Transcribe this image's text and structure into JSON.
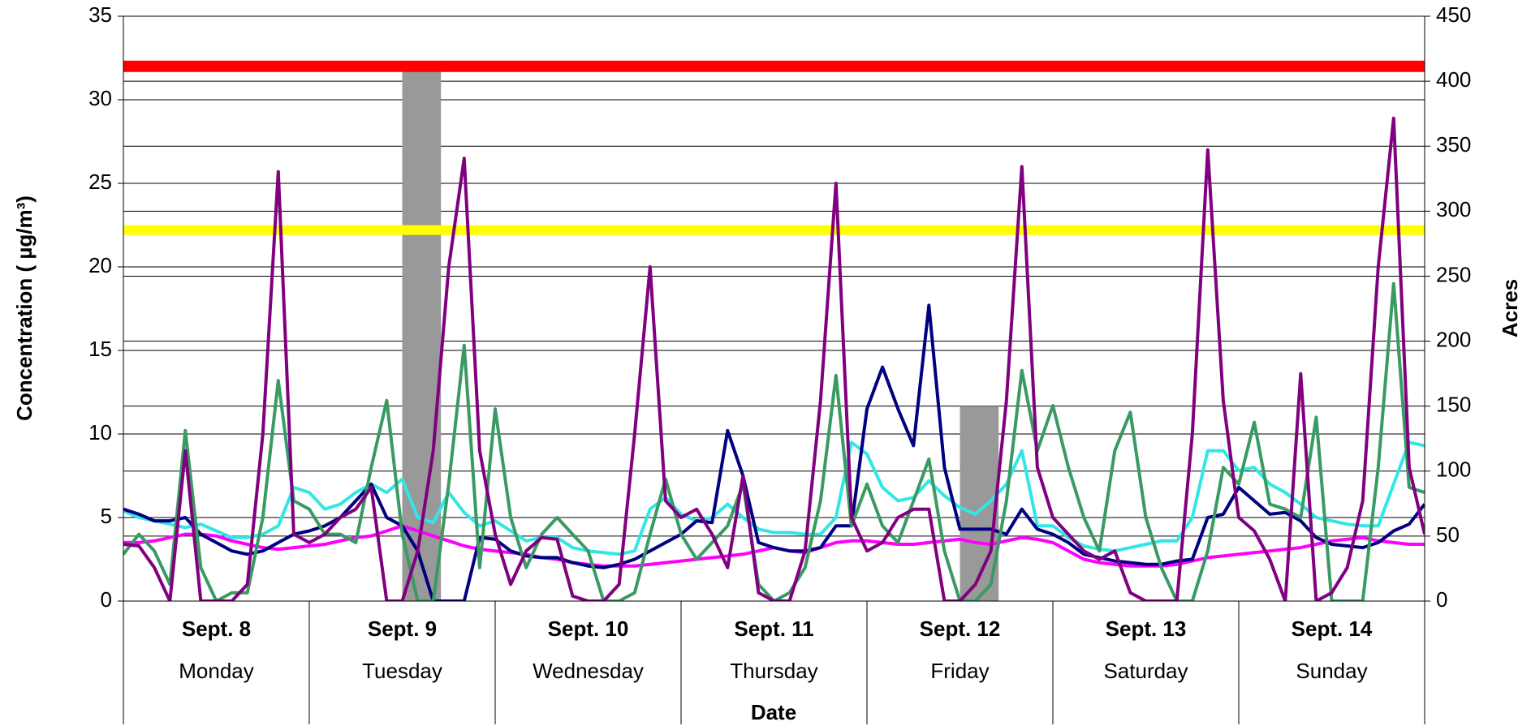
{
  "chart_data": {
    "type": "line",
    "ylabel": "Concentration ( µg/m³)",
    "y2label": "Acres",
    "xlabel": "Date",
    "categories": [
      "Sept. 8",
      "Sept. 9",
      "Sept. 10",
      "Sept. 11",
      "Sept. 12",
      "Sept. 13",
      "Sept. 14"
    ],
    "category_sublabels": [
      "Monday",
      "Tuesday",
      "Wednesday",
      "Thursday",
      "Friday",
      "Saturday",
      "Sunday"
    ],
    "xlim": [
      0,
      168
    ],
    "ylim": [
      0,
      35
    ],
    "yticks": [
      0,
      5,
      10,
      15,
      20,
      25,
      30,
      35
    ],
    "y2lim": [
      0,
      450
    ],
    "y2ticks": [
      0,
      50,
      100,
      150,
      200,
      250,
      300,
      350,
      400,
      450
    ],
    "grid": true,
    "x": [
      0,
      2,
      4,
      6,
      8,
      10,
      12,
      14,
      16,
      18,
      20,
      22,
      24,
      26,
      28,
      30,
      32,
      34,
      36,
      38,
      40,
      42,
      44,
      46,
      48,
      50,
      52,
      54,
      56,
      58,
      60,
      62,
      64,
      66,
      68,
      70,
      72,
      74,
      76,
      78,
      80,
      82,
      84,
      86,
      88,
      90,
      92,
      94,
      96,
      98,
      100,
      102,
      104,
      106,
      108,
      110,
      112,
      114,
      116,
      118,
      120,
      122,
      124,
      126,
      128,
      130,
      132,
      134,
      136,
      138,
      140,
      142,
      144,
      146,
      148,
      150,
      152,
      154,
      156,
      158,
      160,
      162,
      164,
      166,
      168
    ],
    "bars": {
      "x": [
        38.5,
        110.5
      ],
      "values": [
        411,
        150
      ],
      "color": "#999999",
      "axis": "y2"
    },
    "hlines": [
      {
        "value": 32,
        "color": "#ff0000"
      },
      {
        "value": 22.2,
        "color": "#ffff00"
      }
    ],
    "series": [
      {
        "color": "#ff00ff",
        "values": [
          3.5,
          3.5,
          3.6,
          3.8,
          4,
          4,
          3.9,
          3.6,
          3.4,
          3.2,
          3.1,
          3.2,
          3.3,
          3.4,
          3.6,
          3.8,
          3.9,
          4.2,
          4.5,
          4.2,
          3.9,
          3.6,
          3.3,
          3.1,
          3,
          2.9,
          2.8,
          2.6,
          2.5,
          2.3,
          2.2,
          2.1,
          2.1,
          2.1,
          2.2,
          2.3,
          2.4,
          2.5,
          2.6,
          2.7,
          2.8,
          3,
          3.2,
          3,
          2.9,
          3.2,
          3.5,
          3.6,
          3.6,
          3.5,
          3.4,
          3.4,
          3.5,
          3.6,
          3.7,
          3.5,
          3.4,
          3.6,
          3.8,
          3.7,
          3.5,
          3,
          2.5,
          2.3,
          2.2,
          2.1,
          2.1,
          2.1,
          2.2,
          2.4,
          2.6,
          2.7,
          2.8,
          2.9,
          3,
          3.1,
          3.2,
          3.4,
          3.6,
          3.7,
          3.8,
          3.6,
          3.5,
          3.4,
          3.4
        ]
      },
      {
        "color": "#33e6e6",
        "values": [
          5.4,
          5,
          4.8,
          4.6,
          4.4,
          4.6,
          4.2,
          3.8,
          3.8,
          4,
          4.5,
          6.8,
          6.5,
          5.5,
          5.8,
          6.5,
          7,
          6.5,
          7.3,
          5,
          4.7,
          6.5,
          5.3,
          4.5,
          4.8,
          4.2,
          3.6,
          3.8,
          3.8,
          3.2,
          3,
          2.9,
          2.8,
          3,
          5.5,
          6.2,
          5.2,
          4.8,
          5,
          5.8,
          5,
          4.3,
          4.1,
          4.1,
          4,
          4,
          5,
          9.5,
          8.8,
          6.8,
          6,
          6.2,
          7.2,
          6.3,
          5.6,
          5.2,
          6,
          7,
          9,
          4.5,
          4.5,
          3.8,
          3.3,
          3.1,
          3,
          3.2,
          3.4,
          3.6,
          3.6,
          5,
          9,
          9,
          7.8,
          8,
          7,
          6.5,
          5.8,
          5,
          4.8,
          4.6,
          4.5,
          4.5,
          7,
          9.5,
          9.3
        ]
      },
      {
        "color": "#000080",
        "values": [
          5.5,
          5.2,
          4.8,
          4.8,
          5,
          4,
          3.5,
          3,
          2.8,
          3,
          3.5,
          4,
          4.2,
          4.5,
          5,
          6,
          7,
          5,
          4.5,
          3,
          0,
          0,
          0,
          3.8,
          3.7,
          3,
          2.7,
          2.6,
          2.6,
          2.3,
          2.1,
          2,
          2.2,
          2.5,
          3,
          3.5,
          4,
          4.8,
          4.7,
          10.2,
          7.5,
          3.5,
          3.2,
          3,
          3,
          3.2,
          4.5,
          4.5,
          11.5,
          14,
          11.5,
          9.3,
          17.7,
          8,
          4.3,
          4.3,
          4.3,
          4,
          5.5,
          4.3,
          4,
          3.5,
          2.8,
          2.6,
          2.4,
          2.3,
          2.2,
          2.2,
          2.4,
          2.5,
          5,
          5.2,
          6.8,
          6,
          5.2,
          5.3,
          4.8,
          3.8,
          3.4,
          3.3,
          3.2,
          3.5,
          4.2,
          4.6,
          5.8
        ]
      },
      {
        "color": "#3a9a64",
        "values": [
          2.8,
          4,
          3,
          1,
          10.2,
          2,
          0,
          0.5,
          0.5,
          5,
          13.2,
          6,
          5.5,
          4,
          4,
          3.5,
          8,
          12,
          4,
          0,
          0,
          7,
          15.3,
          2,
          11.5,
          5,
          2,
          4,
          5,
          4,
          3,
          0,
          0,
          0.5,
          4,
          7.3,
          4,
          2.5,
          3.5,
          4.5,
          7,
          1,
          0,
          0.5,
          2,
          6,
          13.5,
          4.5,
          7,
          4.5,
          3.5,
          6,
          8.5,
          3,
          0,
          0,
          1,
          6,
          13.8,
          9,
          11.7,
          8,
          5,
          3,
          9,
          11.3,
          5,
          2,
          0,
          0,
          3,
          8,
          7,
          10.7,
          5.8,
          5.5,
          5,
          11,
          0,
          0,
          0,
          8,
          19,
          6.8,
          6.5
        ]
      },
      {
        "color": "#800080",
        "values": [
          3.4,
          3.3,
          2,
          0,
          9,
          0,
          0,
          0,
          1,
          10,
          25.7,
          4,
          3.5,
          4,
          5,
          5.5,
          6.8,
          0,
          0,
          3,
          9,
          20,
          26.5,
          9,
          4,
          1,
          3,
          3.8,
          3.7,
          0.3,
          0,
          0,
          1,
          10,
          20,
          6,
          5,
          5.5,
          4,
          2,
          7.5,
          0.5,
          0,
          0,
          3,
          12,
          25,
          5,
          3,
          3.5,
          5,
          5.5,
          5.5,
          0,
          0,
          1,
          3,
          12,
          26,
          8,
          5,
          4,
          3,
          2.5,
          3,
          0.5,
          0,
          0,
          0,
          10,
          27,
          12,
          5,
          4.2,
          2.5,
          0,
          13.6,
          0,
          0.5,
          2,
          6,
          20,
          28.9,
          8,
          4
        ]
      }
    ]
  }
}
